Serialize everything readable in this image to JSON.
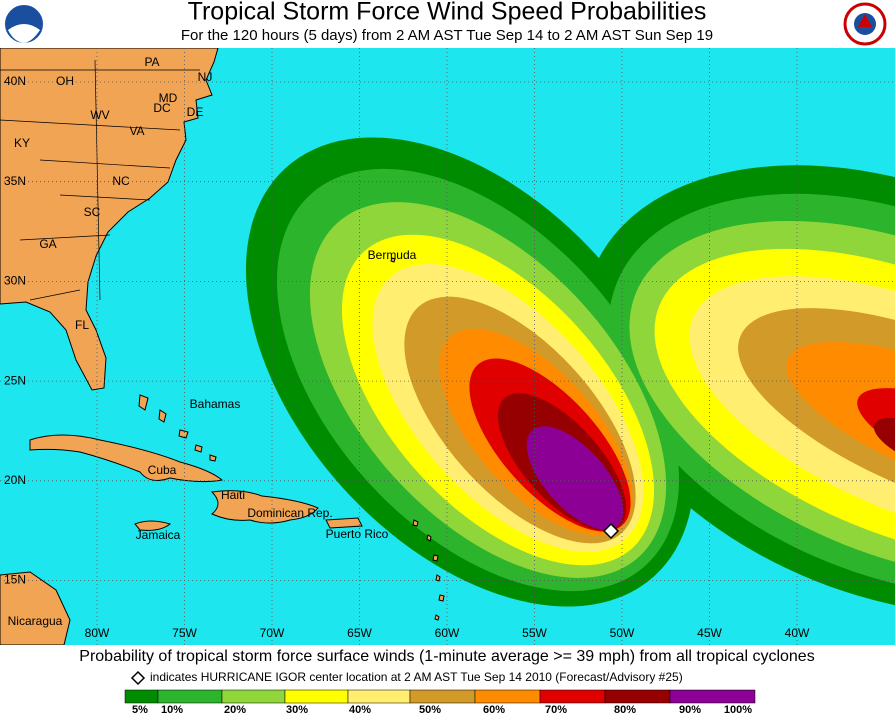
{
  "header": {
    "title": "Tropical Storm Force Wind Speed Probabilities",
    "subtitle": "For the 120 hours (5 days) from 2 AM AST Tue Sep 14 to 2 AM AST Sun Sep 19"
  },
  "map": {
    "lat_labels": [
      "40N",
      "35N",
      "30N",
      "25N",
      "20N",
      "15N"
    ],
    "lon_labels": [
      "80W",
      "75W",
      "70W",
      "65W",
      "60W",
      "55W",
      "50W",
      "45W",
      "40W"
    ],
    "places": [
      "PA",
      "NJ",
      "OH",
      "MD",
      "DC",
      "DE",
      "WV",
      "VA",
      "KY",
      "NC",
      "SC",
      "GA",
      "FL",
      "Bermuda",
      "Bahamas",
      "Cuba",
      "Haiti",
      "Dominican Rep.",
      "Jamaica",
      "Puerto Rico",
      "Nicaragua"
    ]
  },
  "footer": {
    "caption": "Probability of tropical storm force surface winds (1-minute average >= 39 mph) from all tropical cyclones",
    "note": "indicates HURRICANE IGOR center location at 2 AM AST Tue Sep 14 2010 (Forecast/Advisory #25)"
  },
  "legend": {
    "labels": [
      "5%",
      "10%",
      "20%",
      "30%",
      "40%",
      "50%",
      "60%",
      "70%",
      "80%",
      "90%",
      "100%"
    ],
    "colors": [
      "#008c00",
      "#2db42d",
      "#8fd63a",
      "#ffff00",
      "#ffee70",
      "#d29a28",
      "#ff8c00",
      "#e00000",
      "#960000",
      "#8c0096"
    ]
  }
}
